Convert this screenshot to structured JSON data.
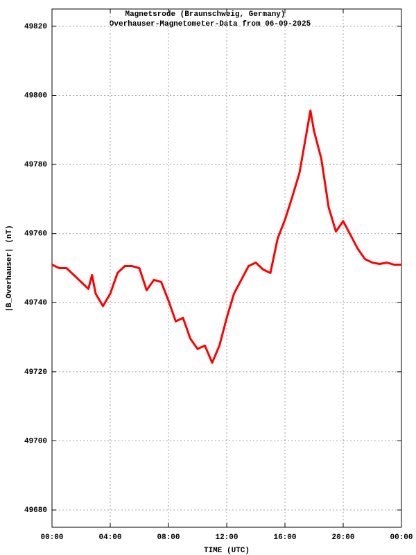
{
  "chart_data": {
    "type": "line",
    "title": "Magnetsrode (Braunschweig, Germany)",
    "subtitle": "Overhauser-Magnetometer-Data from 06-09-2025",
    "x_label": "TIME (UTC)",
    "y_label": "|B_Overhauser| (nT)",
    "x": [
      0,
      0.5,
      1,
      1.5,
      2,
      2.5,
      2.75,
      3,
      3.5,
      4,
      4.5,
      5,
      5.5,
      6,
      6.5,
      7,
      7.5,
      8,
      8.5,
      9,
      9.5,
      10,
      10.5,
      11,
      11.5,
      12,
      12.5,
      13,
      13.5,
      14,
      14.5,
      15,
      15.5,
      16,
      16.5,
      17,
      17.5,
      17.75,
      18,
      18.5,
      19,
      19.5,
      20,
      20.5,
      21,
      21.5,
      22,
      22.5,
      23,
      23.5,
      24
    ],
    "series": [
      {
        "color": "#ff0000",
        "values": [
          49751,
          49750,
          49750,
          49748,
          49746,
          49744,
          49748,
          49742.6,
          49739,
          49742.6,
          49748.6,
          49750.6,
          49750.6,
          49750,
          49743.6,
          49746.6,
          49746,
          49740.6,
          49734.6,
          49735.6,
          49729.6,
          49726.6,
          49727.6,
          49722.6,
          49727.6,
          49735.6,
          49742.6,
          49746.6,
          49750.6,
          49751.6,
          49749.6,
          49748.6,
          49758.6,
          49764,
          49770.6,
          49777.6,
          49789.6,
          49795.6,
          49789.6,
          49781.6,
          49767.6,
          49760.6,
          49763.6,
          49759.6,
          49755.6,
          49752.6,
          49751.6,
          49751.2,
          49751.6,
          49751,
          49751
        ]
      }
    ],
    "xlim": [
      0,
      24
    ],
    "xticks": [
      {
        "value": 0,
        "label": "00:00"
      },
      {
        "value": 4,
        "label": "04:00"
      },
      {
        "value": 8,
        "label": "08:00"
      },
      {
        "value": 12,
        "label": "12:00"
      },
      {
        "value": 16,
        "label": "16:00"
      },
      {
        "value": 20,
        "label": "20:00"
      },
      {
        "value": 24,
        "label": "00:00"
      }
    ],
    "ylim": [
      49675,
      49825
    ],
    "yticks": [
      49680,
      49700,
      49720,
      49740,
      49760,
      49780,
      49800,
      49820
    ],
    "grid": true
  }
}
